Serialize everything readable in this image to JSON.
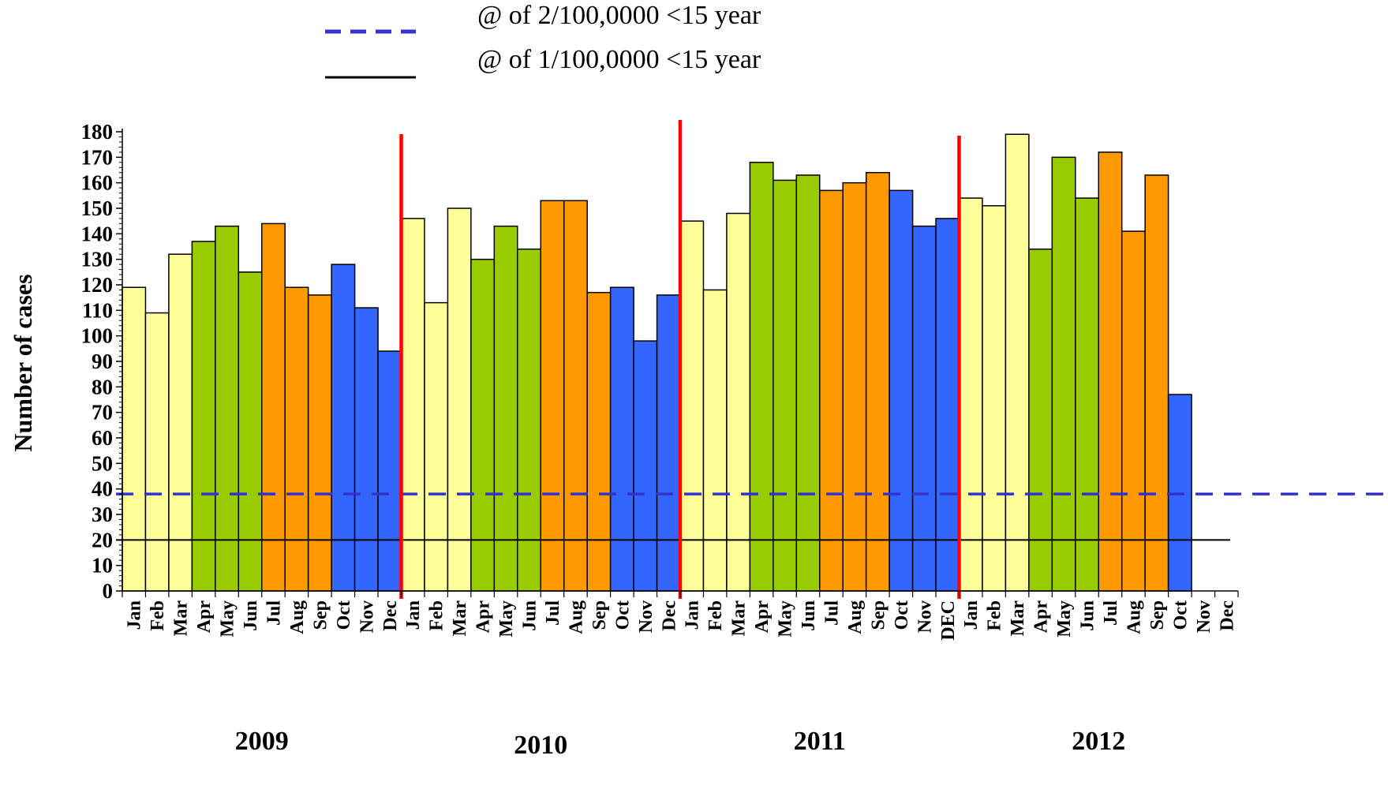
{
  "legend": {
    "items": [
      {
        "label": "@ of 2/100,0000 <15 year",
        "style": "dashed",
        "color": "#3333cc"
      },
      {
        "label": "@ of 1/100,0000 <15 year",
        "style": "solid",
        "color": "#000000"
      }
    ]
  },
  "chart_data": {
    "type": "bar",
    "title": "",
    "ylabel": "Number of cases",
    "xlabel": "",
    "ylim": [
      0,
      180
    ],
    "y_ticks": [
      0,
      10,
      20,
      30,
      40,
      50,
      60,
      70,
      80,
      90,
      100,
      110,
      120,
      130,
      140,
      150,
      160,
      170,
      180
    ],
    "years": [
      {
        "label": "2009",
        "months": [
          "Jan",
          "Feb",
          "Mar",
          "Apr",
          "May",
          "Jun",
          "Jul",
          "Aug",
          "Sep",
          "Oct",
          "Nov",
          "Dec"
        ],
        "values": [
          119,
          109,
          132,
          137,
          143,
          125,
          144,
          119,
          116,
          128,
          111,
          94
        ]
      },
      {
        "label": "2010",
        "months": [
          "Jan",
          "Feb",
          "Mar",
          "Apr",
          "May",
          "Jun",
          "Jul",
          "Aug",
          "Sep",
          "Oct",
          "Nov",
          "Dec"
        ],
        "values": [
          146,
          113,
          150,
          130,
          143,
          134,
          153,
          153,
          117,
          119,
          98,
          116
        ]
      },
      {
        "label": "2011",
        "months": [
          "Jan",
          "Feb",
          "Mar",
          "Apr",
          "May",
          "Jun",
          "Jul",
          "Aug",
          "Sep",
          "Oct",
          "Nov",
          "DEC"
        ],
        "values": [
          145,
          118,
          148,
          168,
          161,
          163,
          157,
          160,
          164,
          157,
          143,
          146
        ]
      },
      {
        "label": "2012",
        "months": [
          "Jan",
          "Feb",
          "Mar",
          "Apr",
          "May",
          "Jun",
          "Jul",
          "Aug",
          "Sep",
          "Oct",
          "Nov",
          "Dec"
        ],
        "values": [
          154,
          151,
          179,
          134,
          170,
          154,
          172,
          141,
          163,
          77,
          null,
          null
        ]
      }
    ],
    "reference_lines": [
      {
        "value": 38,
        "style": "dashed",
        "color": "#3333cc"
      },
      {
        "value": 20,
        "style": "solid",
        "color": "#000000"
      }
    ],
    "season_colors": [
      "#ffff99",
      "#ffff99",
      "#ffff99",
      "#99cc00",
      "#99cc00",
      "#99cc00",
      "#ff9900",
      "#ff9900",
      "#ff9900",
      "#3366ff",
      "#3366ff",
      "#3366ff"
    ],
    "year_separator_color": "#ff0000",
    "grid": false,
    "legend_position": "top"
  }
}
